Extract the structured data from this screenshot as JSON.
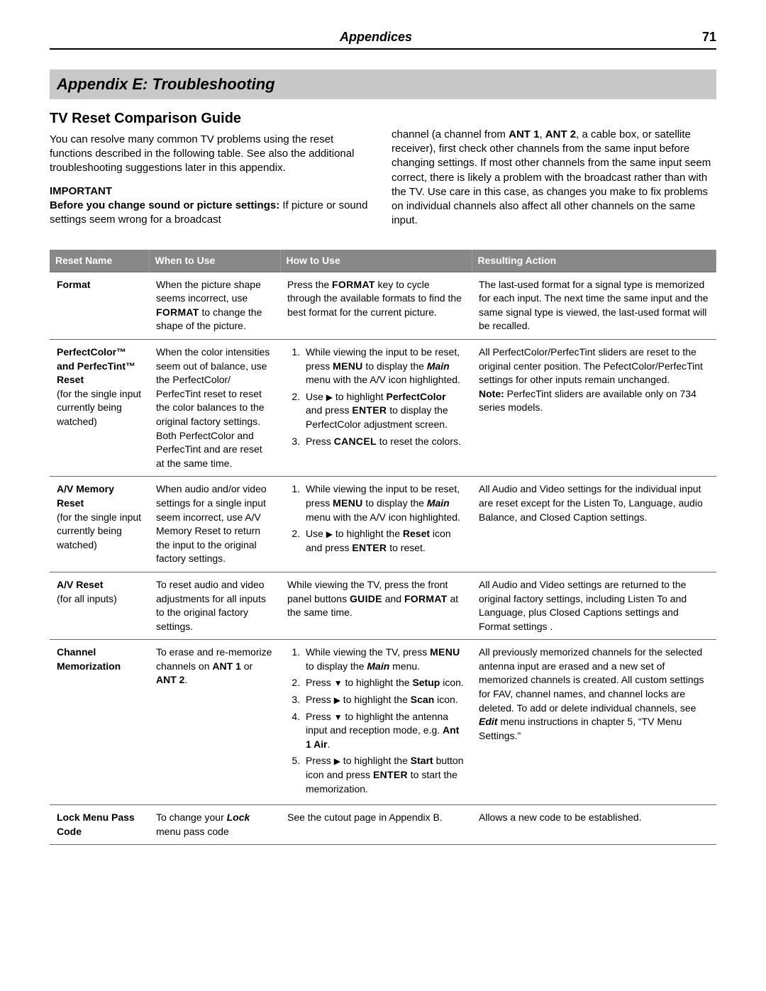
{
  "header": {
    "section": "Appendices",
    "page": "71"
  },
  "title": "Appendix E:  Troubleshooting",
  "subheading": "TV Reset Comparison Guide",
  "intro_left_1": "You can resolve many common TV problems using the reset functions described in the following table.  See also the additional troubleshooting suggestions later in this appendix.",
  "important_label": "IMPORTANT",
  "important_text_prefix": "Before you change sound or picture settings:",
  "important_text_rest": "If picture or sound settings seem wrong for a broadcast",
  "intro_right": "channel (a channel from ANT 1, ANT 2, a cable box, or satellite receiver), first check other channels from the same input before changing settings.  If most other channels from the same input seem correct, there is likely a problem with the broadcast rather than with the TV.  Use care in this case, as changes you make to fix problems on individual channels also affect all other channels on the same input.",
  "table": {
    "headers": [
      "Reset Name",
      "When to Use",
      "How to Use",
      "Resulting Action"
    ],
    "rows": [
      {
        "name_html": "<b>Format</b>",
        "when_html": "When the picture shape seems incorrect, use <span class='smallcaps'>FORMAT</span> to change the shape of the picture.",
        "how_html": "Press the <span class='smallcaps'>FORMAT</span> key to cycle through the available formats to find the best format for the current picture.",
        "res_html": "The last-used format for a signal type is memorized for each input.  The next time the same input and the same signal type is viewed, the last-used format will be recalled."
      },
      {
        "name_html": "<b>PerfectColor™ and PerfecTint™ Reset</b><br>(for the single input currently being watched)",
        "when_html": "When the color intensities seem out of balance, use the PerfectColor/ PerfecTint reset to reset the color balances to the original factory settings.  Both PerfectColor and PerfecTint and are reset at the same time.",
        "how_html": "<ol class='steps'><li>While viewing the input to be reset, press <span class='smallcaps'>MENU</span> to display the <b><i>Main</i></b> menu with the A/V icon highlighted.</li><li>Use <span class='arrow'>▶</span> to highlight <b>PerfectColor</b> and press <span class='smallcaps'>ENTER</span> to display the PerfectColor adjustment screen.</li><li>Press <span class='smallcaps'>CANCEL</span> to reset the colors.</li></ol>",
        "res_html": "All PerfectColor/PerfecTint sliders are reset to the original center position.  The PefectColor/PerfecTint settings for other inputs remain unchanged.<br><b>Note:</b>  PerfecTint sliders are available only on 734 series models."
      },
      {
        "name_html": "<b>A/V Memory Reset</b><br>(for the single input currently being watched)",
        "when_html": "When audio and/or video settings for a single input seem incorrect, use A/V Memory Reset to return the input to the original factory settings.",
        "how_html": "<ol class='steps'><li>While viewing the input to be reset, press <span class='smallcaps'>MENU</span> to display the <b><i>Main</i></b> menu with the A/V icon highlighted.</li><li>Use <span class='arrow'>▶</span> to highlight the <b>Reset</b> icon and press <span class='smallcaps'>ENTER</span> to reset.</li></ol>",
        "res_html": "All Audio and Video settings for the individual input are reset except for the Listen To, Language, audio Balance, and Closed Caption settings."
      },
      {
        "name_html": "<b>A/V Reset</b><br>(for all inputs)",
        "when_html": "To reset audio and video adjustments for all inputs to the original factory settings.",
        "how_html": "While viewing the TV, press the front panel buttons <span class='smallcaps'>GUIDE</span> and <span class='smallcaps'>FORMAT</span> at the same time.",
        "res_html": "All Audio and Video settings are returned to the original factory settings, including Listen To and Language, plus Closed Captions settings and Format settings ."
      },
      {
        "name_html": "<b>Channel Memorization</b>",
        "when_html": "To erase and re-memorize channels on <b>ANT 1</b> or <b>ANT 2</b>.",
        "how_html": "<ol class='steps'><li>While viewing the TV, press <span class='smallcaps'>MENU</span> to display the <b><i>Main</i></b> menu.</li><li>Press <span class='arrow'>▼</span> to highlight the <b>Setup</b> icon.</li><li>Press <span class='arrow'>▶</span> to highlight the <b>Scan</b> icon.</li><li>Press <span class='arrow'>▼</span> to highlight the antenna input and reception mode, e.g. <b>Ant 1 Air</b>.</li><li>Press <span class='arrow'>▶</span> to highlight the <b>Start</b> button icon and press <span class='smallcaps'>ENTER</span> to start the memorization.</li></ol>",
        "res_html": "All previously memorized channels for the selected antenna input are erased and a new set of memorized channels is created.  All custom settings for FAV, channel names, and channel locks are deleted.  To add or delete individual channels, see <b><i>Edit</i></b> menu instructions in chapter 5, “TV Menu Settings.”"
      },
      {
        "name_html": "<b>Lock Menu Pass Code</b>",
        "when_html": "To change your <b><i>Lock</i></b> menu pass code",
        "how_html": "See the cutout page in Appendix B.",
        "res_html": "Allows a new code to be established."
      }
    ]
  }
}
